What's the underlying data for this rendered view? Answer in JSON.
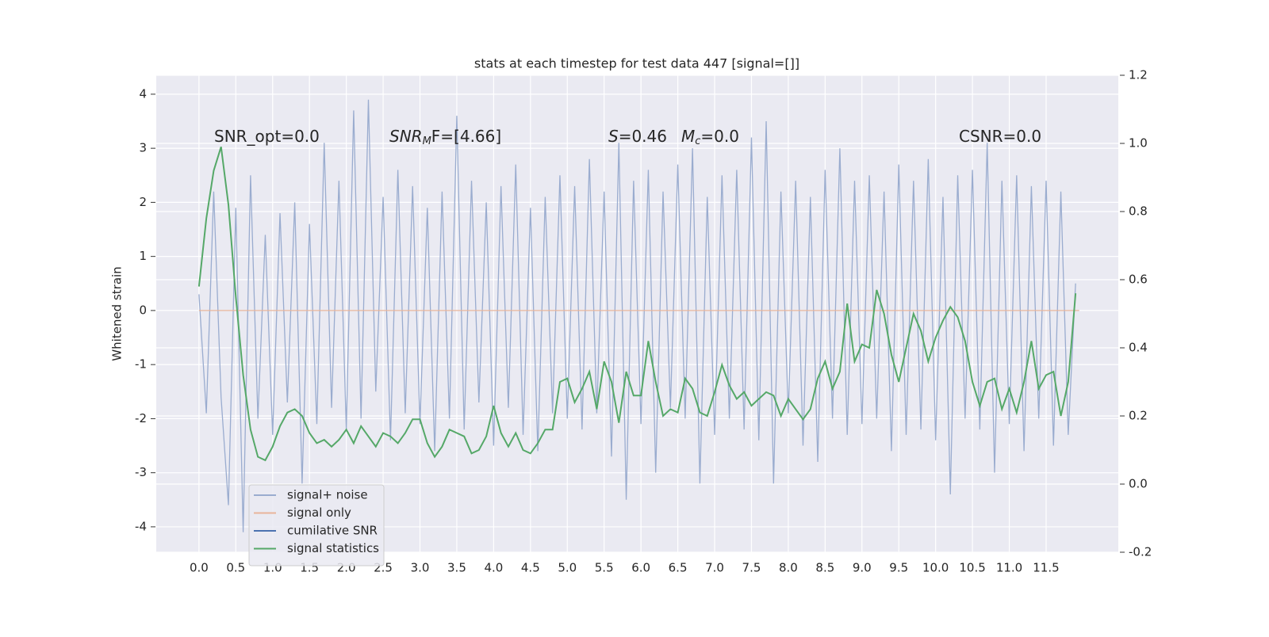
{
  "chart_data": {
    "type": "line",
    "title": "stats at each timestep for test data 447 [signal=[]]",
    "ylabel": "Whitened strain",
    "xlim": [
      -0.58,
      12.48
    ],
    "ylim": [
      -4.47,
      4.35
    ],
    "y2lim": [
      -0.2,
      1.2
    ],
    "xticks": [
      {
        "value": 0,
        "label": "0.0"
      },
      0.5,
      {
        "value": 1,
        "label": "1.0"
      },
      1.5,
      {
        "value": 2,
        "label": "2.0"
      },
      2.5,
      {
        "value": 3,
        "label": "3.0"
      },
      3.5,
      {
        "value": 4,
        "label": "4.0"
      },
      4.5,
      {
        "value": 5,
        "label": "5.0"
      },
      5.5,
      {
        "value": 6,
        "label": "6.0"
      },
      6.5,
      {
        "value": 7,
        "label": "7.0"
      },
      7.5,
      {
        "value": 8,
        "label": "8.0"
      },
      8.5,
      {
        "value": 9,
        "label": "9.0"
      },
      9.5,
      {
        "value": 10,
        "label": "10.0"
      },
      10.5,
      {
        "value": 11,
        "label": "11.0"
      },
      11.5
    ],
    "yticks": [
      -4,
      -3,
      -2,
      -1,
      0,
      1,
      2,
      3,
      4
    ],
    "y2ticks": [
      -0.2,
      {
        "value": 0,
        "label": "0.0"
      },
      0.2,
      0.4,
      0.6,
      0.8,
      {
        "value": 1,
        "label": "1.0"
      },
      1.2
    ],
    "grid": true,
    "background": "#eaeaf2",
    "legend": "lower left",
    "annotations": [
      {
        "text": "SNR_opt=0.0"
      },
      {
        "base": "SNR",
        "sub": "M",
        "rest": "F=[4.66]"
      },
      {
        "base": "S",
        "rest": "=0.46"
      },
      {
        "base": "M",
        "sub": "c",
        "rest": "=0.0"
      },
      {
        "text": "CSNR=0.0"
      }
    ],
    "x": [
      0,
      0.1,
      0.2,
      0.3,
      0.4,
      0.5,
      0.6,
      0.7,
      0.8,
      0.9,
      1,
      1.1,
      1.2,
      1.3,
      1.4,
      1.5,
      1.6,
      1.7,
      1.8,
      1.9,
      2,
      2.1,
      2.2,
      2.3,
      2.4,
      2.5,
      2.6,
      2.7,
      2.8,
      2.9,
      3,
      3.1,
      3.2,
      3.3,
      3.4,
      3.5,
      3.6,
      3.7,
      3.8,
      3.9,
      4,
      4.1,
      4.2,
      4.3,
      4.4,
      4.5,
      4.6,
      4.7,
      4.8,
      4.9,
      5,
      5.1,
      5.2,
      5.3,
      5.4,
      5.5,
      5.6,
      5.7,
      5.8,
      5.9,
      6,
      6.1,
      6.2,
      6.3,
      6.4,
      6.5,
      6.6,
      6.7,
      6.8,
      6.9,
      7,
      7.1,
      7.2,
      7.3,
      7.4,
      7.5,
      7.6,
      7.7,
      7.8,
      7.9,
      8,
      8.1,
      8.2,
      8.3,
      8.4,
      8.5,
      8.6,
      8.7,
      8.8,
      8.9,
      9,
      9.1,
      9.2,
      9.3,
      9.4,
      9.5,
      9.6,
      9.7,
      9.8,
      9.9,
      10,
      10.1,
      10.2,
      10.3,
      10.4,
      10.5,
      10.6,
      10.7,
      10.8,
      10.9,
      11,
      11.1,
      11.2,
      11.3,
      11.4,
      11.5,
      11.6,
      11.7,
      11.8,
      11.9
    ],
    "series": [
      {
        "name": "signal+ noise",
        "color": "#9aaccf",
        "values": [
          0.3,
          -1.9,
          2.2,
          -1.6,
          -3.6,
          1.9,
          -4.1,
          2.5,
          -2.0,
          1.4,
          -2.3,
          1.8,
          -1.7,
          2.0,
          -3.2,
          1.6,
          -2.1,
          3.1,
          -1.8,
          2.4,
          -2.2,
          3.7,
          -2.0,
          3.9,
          -1.5,
          2.1,
          -2.4,
          2.6,
          -1.9,
          2.3,
          -2.1,
          1.9,
          -2.6,
          2.2,
          -2.0,
          3.6,
          -2.2,
          2.4,
          -1.7,
          2.0,
          -2.5,
          2.3,
          -1.8,
          2.7,
          -2.3,
          1.9,
          -2.6,
          2.1,
          -1.9,
          2.5,
          -2.0,
          2.3,
          -2.2,
          2.8,
          -1.9,
          2.2,
          -2.7,
          3.1,
          -3.5,
          2.4,
          -2.1,
          2.6,
          -3.0,
          2.2,
          -1.8,
          2.7,
          -2.0,
          3.0,
          -3.2,
          2.1,
          -2.3,
          2.5,
          -2.0,
          2.6,
          -2.2,
          3.2,
          -2.4,
          3.5,
          -3.2,
          2.2,
          -1.9,
          2.4,
          -2.5,
          2.1,
          -2.8,
          2.6,
          -2.0,
          3.0,
          -2.3,
          2.4,
          -2.1,
          2.5,
          -2.0,
          2.2,
          -2.6,
          2.7,
          -2.3,
          2.4,
          -2.2,
          2.8,
          -2.4,
          2.1,
          -3.4,
          2.5,
          -2.0,
          2.6,
          -2.2,
          3.1,
          -3.0,
          2.4,
          -2.1,
          2.5,
          -2.6,
          2.3,
          -2.0,
          2.4,
          -2.5,
          2.2,
          -2.3,
          0.5
        ]
      },
      {
        "name": "signal only",
        "color": "#e8b49a",
        "x": [
          0,
          11.95
        ],
        "values": [
          0,
          0
        ]
      },
      {
        "name": "cumilative SNR",
        "color": "#4c72b0",
        "x": [],
        "values": []
      },
      {
        "name": "signal statistics",
        "color": "#55a868",
        "axis": "y2",
        "values": [
          0.58,
          0.78,
          0.92,
          0.99,
          0.82,
          0.55,
          0.32,
          0.16,
          0.08,
          0.07,
          0.11,
          0.17,
          0.21,
          0.22,
          0.2,
          0.15,
          0.12,
          0.13,
          0.11,
          0.13,
          0.16,
          0.12,
          0.17,
          0.14,
          0.11,
          0.15,
          0.14,
          0.12,
          0.15,
          0.19,
          0.19,
          0.12,
          0.08,
          0.11,
          0.16,
          0.15,
          0.14,
          0.09,
          0.1,
          0.14,
          0.23,
          0.15,
          0.11,
          0.15,
          0.1,
          0.09,
          0.12,
          0.16,
          0.16,
          0.3,
          0.31,
          0.24,
          0.28,
          0.33,
          0.22,
          0.36,
          0.3,
          0.18,
          0.33,
          0.26,
          0.26,
          0.42,
          0.3,
          0.2,
          0.22,
          0.21,
          0.31,
          0.28,
          0.21,
          0.2,
          0.27,
          0.35,
          0.29,
          0.25,
          0.27,
          0.23,
          0.25,
          0.27,
          0.26,
          0.2,
          0.25,
          0.22,
          0.19,
          0.22,
          0.31,
          0.36,
          0.28,
          0.33,
          0.53,
          0.36,
          0.41,
          0.4,
          0.57,
          0.5,
          0.38,
          0.3,
          0.4,
          0.5,
          0.45,
          0.36,
          0.43,
          0.48,
          0.52,
          0.49,
          0.42,
          0.3,
          0.23,
          0.3,
          0.31,
          0.22,
          0.28,
          0.21,
          0.3,
          0.42,
          0.28,
          0.32,
          0.33,
          0.2,
          0.3,
          0.56
        ]
      }
    ]
  }
}
